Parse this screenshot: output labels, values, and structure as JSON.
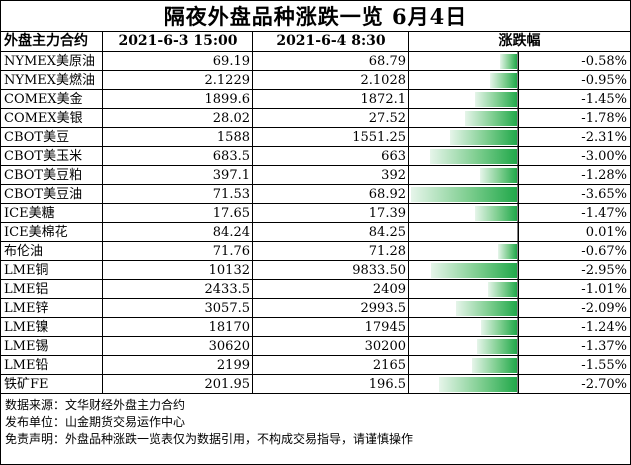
{
  "title": "隔夜外盘品种涨跌一览 6月4日",
  "headers": {
    "contract": "外盘主力合约",
    "date1": "2021-6-3 15:00",
    "date2": "2021-6-4 8:30",
    "change": "涨跌幅"
  },
  "rows": [
    {
      "name": "NYMEX美原油",
      "prev": "69.19",
      "curr": "68.79",
      "change": "-0.58%",
      "pct": -0.58
    },
    {
      "name": "NYMEX美燃油",
      "prev": "2.1229",
      "curr": "2.1028",
      "change": "-0.95%",
      "pct": -0.95
    },
    {
      "name": "COMEX美金",
      "prev": "1899.6",
      "curr": "1872.1",
      "change": "-1.45%",
      "pct": -1.45
    },
    {
      "name": "COMEX美银",
      "prev": "28.02",
      "curr": "27.52",
      "change": "-1.78%",
      "pct": -1.78
    },
    {
      "name": "CBOT美豆",
      "prev": "1588",
      "curr": "1551.25",
      "change": "-2.31%",
      "pct": -2.31
    },
    {
      "name": "CBOT美玉米",
      "prev": "683.5",
      "curr": "663",
      "change": "-3.00%",
      "pct": -3.0
    },
    {
      "name": "CBOT美豆粕",
      "prev": "397.1",
      "curr": "392",
      "change": "-1.28%",
      "pct": -1.28
    },
    {
      "name": "CBOT美豆油",
      "prev": "71.53",
      "curr": "68.92",
      "change": "-3.65%",
      "pct": -3.65
    },
    {
      "name": "ICE美糖",
      "prev": "17.65",
      "curr": "17.39",
      "change": "-1.47%",
      "pct": -1.47
    },
    {
      "name": "ICE美棉花",
      "prev": "84.24",
      "curr": "84.25",
      "change": "0.01%",
      "pct": 0.01
    },
    {
      "name": "布伦油",
      "prev": "71.76",
      "curr": "71.28",
      "change": "-0.67%",
      "pct": -0.67
    },
    {
      "name": "LME铜",
      "prev": "10132",
      "curr": "9833.50",
      "change": "-2.95%",
      "pct": -2.95
    },
    {
      "name": "LME铝",
      "prev": "2433.5",
      "curr": "2409",
      "change": "-1.01%",
      "pct": -1.01
    },
    {
      "name": "LME锌",
      "prev": "3057.5",
      "curr": "2993.5",
      "change": "-2.09%",
      "pct": -2.09
    },
    {
      "name": "LME镍",
      "prev": "18170",
      "curr": "17945",
      "change": "-1.24%",
      "pct": -1.24
    },
    {
      "name": "LME锡",
      "prev": "30620",
      "curr": "30200",
      "change": "-1.37%",
      "pct": -1.37
    },
    {
      "name": "LME铅",
      "prev": "2199",
      "curr": "2165",
      "change": "-1.55%",
      "pct": -1.55
    },
    {
      "name": "铁矿FE",
      "prev": "201.95",
      "curr": "196.5",
      "change": "-2.70%",
      "pct": -2.7
    }
  ],
  "notes": [
    "数据来源：文华财经外盘主力合约",
    "发布单位：山金期货交易运作中心",
    "免责声明：外盘品种涨跌一览表仅为数据引用，不构成交易指导，请谨慎操作"
  ],
  "colors": {
    "bar": "#21a84a",
    "bar_light": "#e6f5ea",
    "border": "#000000"
  }
}
